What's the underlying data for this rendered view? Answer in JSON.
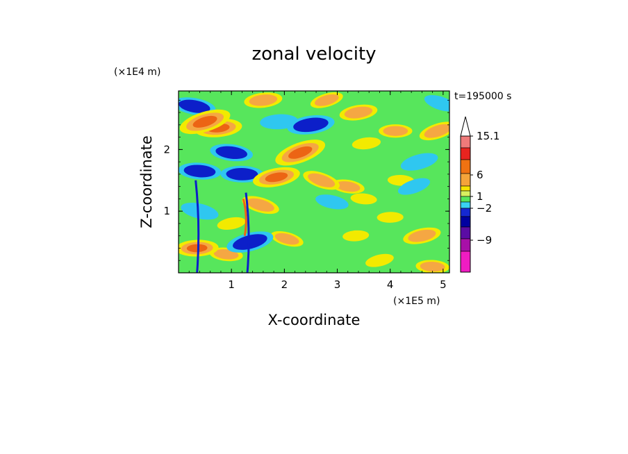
{
  "chart_data": {
    "type": "heatmap",
    "title": "zonal velocity",
    "xlabel": "X-coordinate",
    "ylabel": "Z-coordinate",
    "x_scale_label": "(×1E5 m)",
    "y_scale_label": "(×1E4 m)",
    "time_label": "t=195000 s",
    "xlim": [
      0,
      5.12
    ],
    "ylim": [
      0,
      2.95
    ],
    "x_ticks": [
      1,
      2,
      3,
      4,
      5
    ],
    "x_tick_labels": [
      "1",
      "2",
      "3",
      "4",
      "5"
    ],
    "y_ticks": [
      1,
      2
    ],
    "y_tick_labels": [
      "1",
      "2"
    ],
    "colorbar": {
      "labels": [
        {
          "value": 15.1,
          "text": "15.1"
        },
        {
          "value": 6,
          "text": "6"
        },
        {
          "value": 1,
          "text": "1"
        },
        {
          "value": -2,
          "text": "−2"
        },
        {
          "value": -9,
          "text": "−9"
        }
      ],
      "colors_top_to_bottom": [
        "#f7c1c1",
        "#ef7a7a",
        "#e8241f",
        "#f07212",
        "#f5a43a",
        "#f7e500",
        "#d8f060",
        "#57e65c",
        "#3ad2f4",
        "#1528d1",
        "#0000a0",
        "#5a0ca4",
        "#a810a8",
        "#f01cc2"
      ],
      "extend_max": true
    },
    "colors": {
      "strong_negative": "#0c1fc9",
      "negative": "#2fc7f0",
      "near_zero": "#4ee04e",
      "weak_positive": "#f2ea00",
      "positive": "#f5a743",
      "strong_positive": "#ec6414"
    },
    "fields": [
      {
        "x": 0.3,
        "z": 2.7,
        "v": -5
      },
      {
        "x": 0.5,
        "z": 2.45,
        "v": 7
      },
      {
        "x": 0.75,
        "z": 2.35,
        "v": 6
      },
      {
        "x": 1.0,
        "z": 1.95,
        "v": -5
      },
      {
        "x": 0.4,
        "z": 1.65,
        "v": -5
      },
      {
        "x": 1.2,
        "z": 1.6,
        "v": -5
      },
      {
        "x": 1.9,
        "z": 2.45,
        "v": -4
      },
      {
        "x": 2.5,
        "z": 2.4,
        "v": -6
      },
      {
        "x": 2.3,
        "z": 1.95,
        "v": 7
      },
      {
        "x": 1.85,
        "z": 1.55,
        "v": 6
      },
      {
        "x": 1.6,
        "z": 2.8,
        "v": 4
      },
      {
        "x": 2.8,
        "z": 2.8,
        "v": 3
      },
      {
        "x": 3.4,
        "z": 2.6,
        "v": 4
      },
      {
        "x": 3.55,
        "z": 2.1,
        "v": 2
      },
      {
        "x": 3.5,
        "z": 1.2,
        "v": 1.5
      },
      {
        "x": 4.2,
        "z": 1.5,
        "v": 1.5
      },
      {
        "x": 4.0,
        "z": 0.9,
        "v": 1.5
      },
      {
        "x": 4.6,
        "z": 0.6,
        "v": 4
      },
      {
        "x": 4.55,
        "z": 1.8,
        "v": -4
      },
      {
        "x": 4.45,
        "z": 1.4,
        "v": -3
      },
      {
        "x": 4.9,
        "z": 2.3,
        "v": 4
      },
      {
        "x": 4.95,
        "z": 2.75,
        "v": -3
      },
      {
        "x": 2.05,
        "z": 0.55,
        "v": 3
      },
      {
        "x": 2.8,
        "z": 0.5,
        "v": 0
      },
      {
        "x": 3.35,
        "z": 0.6,
        "v": 1.5
      },
      {
        "x": 2.9,
        "z": 1.15,
        "v": -3
      },
      {
        "x": 3.2,
        "z": 1.4,
        "v": 3
      },
      {
        "x": 2.7,
        "z": 1.5,
        "v": 4
      },
      {
        "x": 1.55,
        "z": 1.1,
        "v": 4
      },
      {
        "x": 0.6,
        "z": 1.1,
        "v": 1
      },
      {
        "x": 0.35,
        "z": 0.4,
        "v": 5
      },
      {
        "x": 1.35,
        "z": 0.5,
        "v": -6
      },
      {
        "x": 0.4,
        "z": 1.0,
        "v": -4
      },
      {
        "x": 1.0,
        "z": 0.8,
        "v": 2
      },
      {
        "x": 0.9,
        "z": 0.3,
        "v": 3
      },
      {
        "x": 3.8,
        "z": 0.2,
        "v": 2
      },
      {
        "x": 4.8,
        "z": 0.1,
        "v": 3
      },
      {
        "x": 4.1,
        "z": 2.3,
        "v": 3
      },
      {
        "x": 4.3,
        "z": 2.75,
        "v": 0
      },
      {
        "x": 2.1,
        "z": 2.8,
        "v": 1
      },
      {
        "x": 0.1,
        "z": 2.2,
        "v": 1
      }
    ]
  }
}
